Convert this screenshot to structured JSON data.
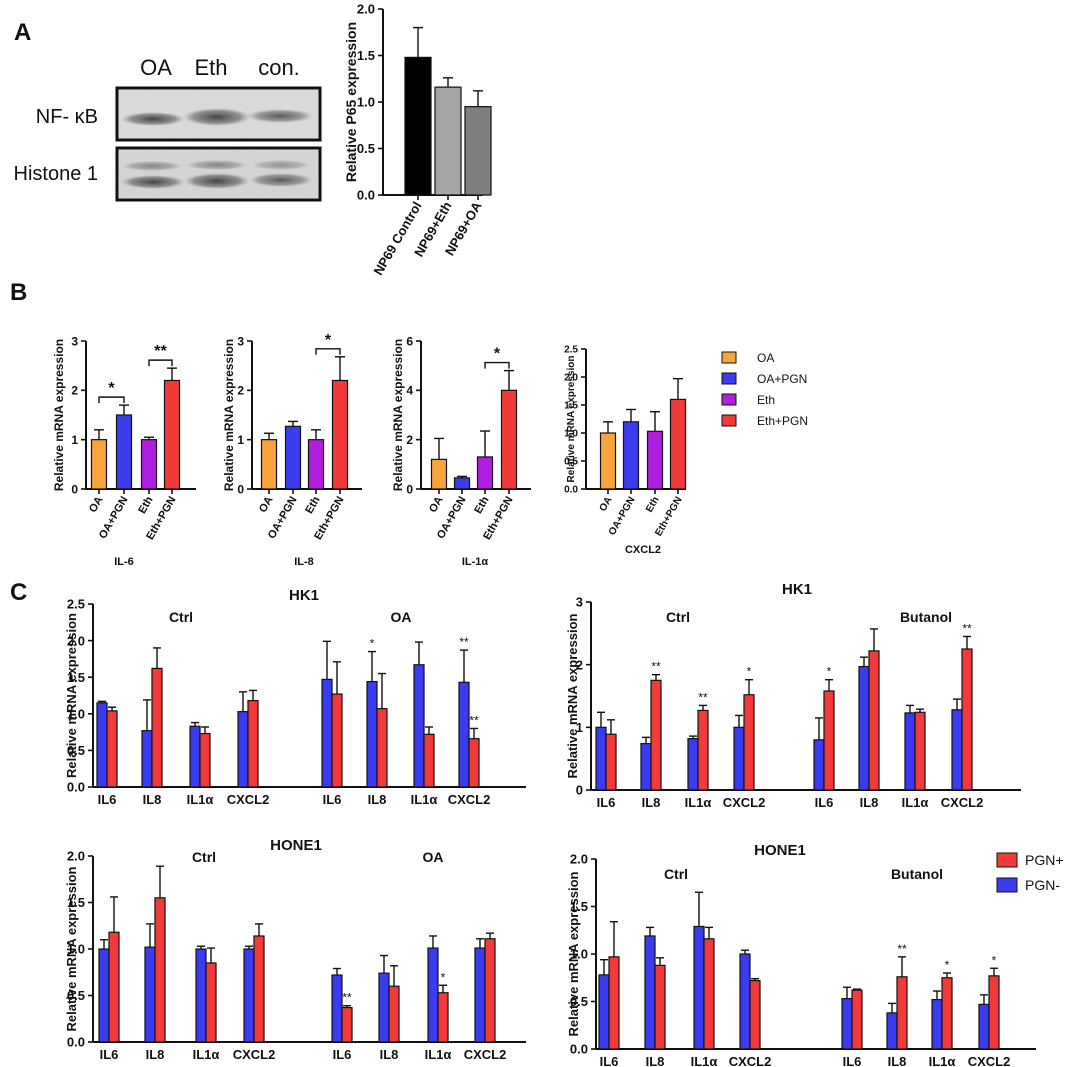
{
  "panel_labels": {
    "a": "A",
    "b": "B",
    "c": "C"
  },
  "blot": {
    "lanes": [
      "OA",
      "Eth",
      "con."
    ],
    "rows": [
      "NF- κB",
      "Histone 1"
    ]
  },
  "colors": {
    "black": "#000000",
    "gray_light": "#a6a6a6",
    "gray_mid": "#7f7f7f",
    "orange": "#f7a43c",
    "blue": "#3b3bf0",
    "purple": "#b01ee0",
    "red": "#f23a3a"
  },
  "chart_data": [
    {
      "id": "a_p65",
      "type": "bar",
      "title": "",
      "categories": [
        "NP69 Control",
        "NP69+Eth",
        "NP69+OA"
      ],
      "values": [
        1.48,
        1.16,
        0.95
      ],
      "errors": [
        0.32,
        0.1,
        0.17
      ],
      "colors": [
        "#000000",
        "#a6a6a6",
        "#7f7f7f"
      ],
      "ylabel": "Relative P65 expression",
      "ylim": [
        0,
        2.0
      ],
      "yticks": [
        "0.0",
        "0.5",
        "1.0",
        "1.5",
        "2.0"
      ],
      "significance": []
    },
    {
      "id": "b_il6",
      "type": "bar",
      "title": "",
      "xlabel": "IL-6",
      "categories": [
        "OA",
        "OA+PGN",
        "Eth",
        "Eth+PGN"
      ],
      "values": [
        1.0,
        1.5,
        1.0,
        2.2
      ],
      "errors": [
        0.2,
        0.2,
        0.05,
        0.25
      ],
      "colors": [
        "#f7a43c",
        "#3b3bf0",
        "#b01ee0",
        "#f23a3a"
      ],
      "ylabel": "Relative mRNA expression",
      "ylim": [
        0,
        3
      ],
      "yticks": [
        "0",
        "1",
        "2",
        "3"
      ],
      "significance": [
        {
          "from": 0,
          "to": 1,
          "label": "*"
        },
        {
          "from": 2,
          "to": 3,
          "label": "**"
        }
      ]
    },
    {
      "id": "b_il8",
      "type": "bar",
      "title": "",
      "xlabel": "IL-8",
      "categories": [
        "OA",
        "OA+PGN",
        "Eth",
        "Eth+PGN"
      ],
      "values": [
        1.0,
        1.27,
        1.0,
        2.2
      ],
      "errors": [
        0.13,
        0.1,
        0.2,
        0.48
      ],
      "colors": [
        "#f7a43c",
        "#3b3bf0",
        "#b01ee0",
        "#f23a3a"
      ],
      "ylabel": "Relative mRNA expression",
      "ylim": [
        0,
        3
      ],
      "yticks": [
        "0",
        "1",
        "2",
        "3"
      ],
      "significance": [
        {
          "from": 2,
          "to": 3,
          "label": "*"
        }
      ]
    },
    {
      "id": "b_il1a",
      "type": "bar",
      "title": "",
      "xlabel": "IL-1α",
      "categories": [
        "OA",
        "OA+PGN",
        "Eth",
        "Eth+PGN"
      ],
      "values": [
        1.2,
        0.45,
        1.3,
        4.0
      ],
      "errors": [
        0.85,
        0.06,
        1.05,
        0.8
      ],
      "colors": [
        "#f7a43c",
        "#3b3bf0",
        "#b01ee0",
        "#f23a3a"
      ],
      "ylabel": "Relative mRNA expression",
      "ylim": [
        0,
        6
      ],
      "yticks": [
        "0",
        "2",
        "4",
        "6"
      ],
      "significance": [
        {
          "from": 2,
          "to": 3,
          "label": "*"
        }
      ]
    },
    {
      "id": "b_cxcl2",
      "type": "bar",
      "title": "",
      "xlabel": "CXCL2",
      "categories": [
        "OA",
        "OA+PGN",
        "Eth",
        "Eth+PGN"
      ],
      "values": [
        1.0,
        1.2,
        1.03,
        1.6
      ],
      "errors": [
        0.2,
        0.22,
        0.35,
        0.37
      ],
      "colors": [
        "#f7a43c",
        "#3b3bf0",
        "#b01ee0",
        "#f23a3a"
      ],
      "ylabel": "Relative mRNA expression",
      "ylim": [
        0,
        2.5
      ],
      "yticks": [
        "0.0",
        "0.5",
        "1.0",
        "1.5",
        "2.0",
        "2.5"
      ],
      "significance": []
    },
    {
      "id": "c_hk1_oa",
      "type": "bar",
      "title": "HK1",
      "group_labels": [
        "Ctrl",
        "OA"
      ],
      "categories": [
        "IL6",
        "IL8",
        "IL1α",
        "CXCL2",
        "IL6",
        "IL8",
        "IL1α",
        "CXCL2"
      ],
      "series": [
        {
          "name": "PGN-",
          "values": [
            1.15,
            0.77,
            0.83,
            1.03,
            1.47,
            1.44,
            1.67,
            1.43
          ],
          "errors": [
            0.02,
            0.42,
            0.05,
            0.27,
            0.52,
            0.41,
            0.31,
            0.44
          ]
        },
        {
          "name": "PGN+",
          "values": [
            1.04,
            1.62,
            0.73,
            1.18,
            1.27,
            1.07,
            0.72,
            0.66
          ],
          "errors": [
            0.05,
            0.28,
            0.09,
            0.14,
            0.44,
            0.48,
            0.1,
            0.14
          ]
        }
      ],
      "annotations": [
        "",
        "",
        "",
        "",
        "",
        "",
        "",
        "",
        "",
        "",
        "*",
        "",
        "",
        "",
        "**",
        "**"
      ],
      "ylabel": "Relative mRNA expression",
      "ylim": [
        0,
        2.5
      ],
      "yticks": [
        "0.0",
        "0.5",
        "1.0",
        "1.5",
        "2.0",
        "2.5"
      ]
    },
    {
      "id": "c_hk1_butanol",
      "type": "bar",
      "title": "HK1",
      "group_labels": [
        "Ctrl",
        "Butanol"
      ],
      "categories": [
        "IL6",
        "IL8",
        "IL1α",
        "CXCL2",
        "IL6",
        "IL8",
        "IL1α",
        "CXCL2"
      ],
      "series": [
        {
          "name": "PGN-",
          "values": [
            1.0,
            0.74,
            0.82,
            1.0,
            0.8,
            1.97,
            1.23,
            1.28
          ],
          "errors": [
            0.24,
            0.1,
            0.04,
            0.19,
            0.35,
            0.15,
            0.12,
            0.17
          ]
        },
        {
          "name": "PGN+",
          "values": [
            0.89,
            1.75,
            1.27,
            1.52,
            1.58,
            2.22,
            1.24,
            2.25
          ],
          "errors": [
            0.23,
            0.09,
            0.08,
            0.24,
            0.18,
            0.35,
            0.05,
            0.2
          ]
        }
      ],
      "annotations": [
        "",
        "",
        "",
        "**",
        "",
        "**",
        "",
        "*",
        "",
        "*",
        "",
        "",
        "",
        "",
        "",
        "**"
      ],
      "ylabel": "Relative mRNA expression",
      "ylim": [
        0,
        3
      ],
      "yticks": [
        "0",
        "1",
        "2",
        "3"
      ]
    },
    {
      "id": "c_hone1_oa",
      "type": "bar",
      "title": "HONE1",
      "group_labels": [
        "Ctrl",
        "OA"
      ],
      "categories": [
        "IL6",
        "IL8",
        "IL1α",
        "CXCL2",
        "IL6",
        "IL8",
        "IL1α",
        "CXCL2"
      ],
      "series": [
        {
          "name": "PGN-",
          "values": [
            1.0,
            1.02,
            1.0,
            1.0,
            0.72,
            0.74,
            1.01,
            1.01
          ],
          "errors": [
            0.1,
            0.25,
            0.03,
            0.03,
            0.07,
            0.19,
            0.13,
            0.1
          ]
        },
        {
          "name": "PGN+",
          "values": [
            1.18,
            1.55,
            0.85,
            1.14,
            0.37,
            0.6,
            0.53,
            1.11
          ],
          "errors": [
            0.38,
            0.34,
            0.16,
            0.13,
            0.02,
            0.22,
            0.08,
            0.06
          ]
        }
      ],
      "annotations": [
        "",
        "",
        "",
        "",
        "",
        "",
        "",
        "",
        "",
        "**",
        "",
        "",
        "",
        "*",
        "",
        ""
      ],
      "ylabel": "Relative mRNA expression",
      "ylim": [
        0,
        2.0
      ],
      "yticks": [
        "0.0",
        "0.5",
        "1.0",
        "1.5",
        "2.0"
      ]
    },
    {
      "id": "c_hone1_butanol",
      "type": "bar",
      "title": "HONE1",
      "group_labels": [
        "Ctrl",
        "Butanol"
      ],
      "categories": [
        "IL6",
        "IL8",
        "IL1α",
        "CXCL2",
        "IL6",
        "IL8",
        "IL1α",
        "CXCL2"
      ],
      "series": [
        {
          "name": "PGN-",
          "values": [
            0.78,
            1.19,
            1.29,
            1.0,
            0.53,
            0.38,
            0.52,
            0.47
          ],
          "errors": [
            0.16,
            0.09,
            0.36,
            0.04,
            0.12,
            0.1,
            0.09,
            0.1
          ]
        },
        {
          "name": "PGN+",
          "values": [
            0.97,
            0.88,
            1.16,
            0.72,
            0.62,
            0.76,
            0.75,
            0.77
          ],
          "errors": [
            0.37,
            0.08,
            0.12,
            0.02,
            0.01,
            0.21,
            0.05,
            0.08
          ]
        }
      ],
      "annotations": [
        "",
        "",
        "",
        "",
        "",
        "",
        "",
        "",
        "",
        "",
        "",
        "**",
        "",
        "*",
        "",
        "*"
      ],
      "ylabel": "Relative mRNA expression",
      "ylim": [
        0,
        2.0
      ],
      "yticks": [
        "0.0",
        "0.5",
        "1.0",
        "1.5",
        "2.0"
      ]
    }
  ],
  "legend_b": [
    {
      "label": "OA",
      "color": "#f7a43c"
    },
    {
      "label": "OA+PGN",
      "color": "#3b3bf0"
    },
    {
      "label": "Eth",
      "color": "#b01ee0"
    },
    {
      "label": "Eth+PGN",
      "color": "#f23a3a"
    }
  ],
  "legend_c": [
    {
      "label": "PGN+",
      "color": "#f23a3a"
    },
    {
      "label": "PGN-",
      "color": "#3b3bf0"
    }
  ]
}
